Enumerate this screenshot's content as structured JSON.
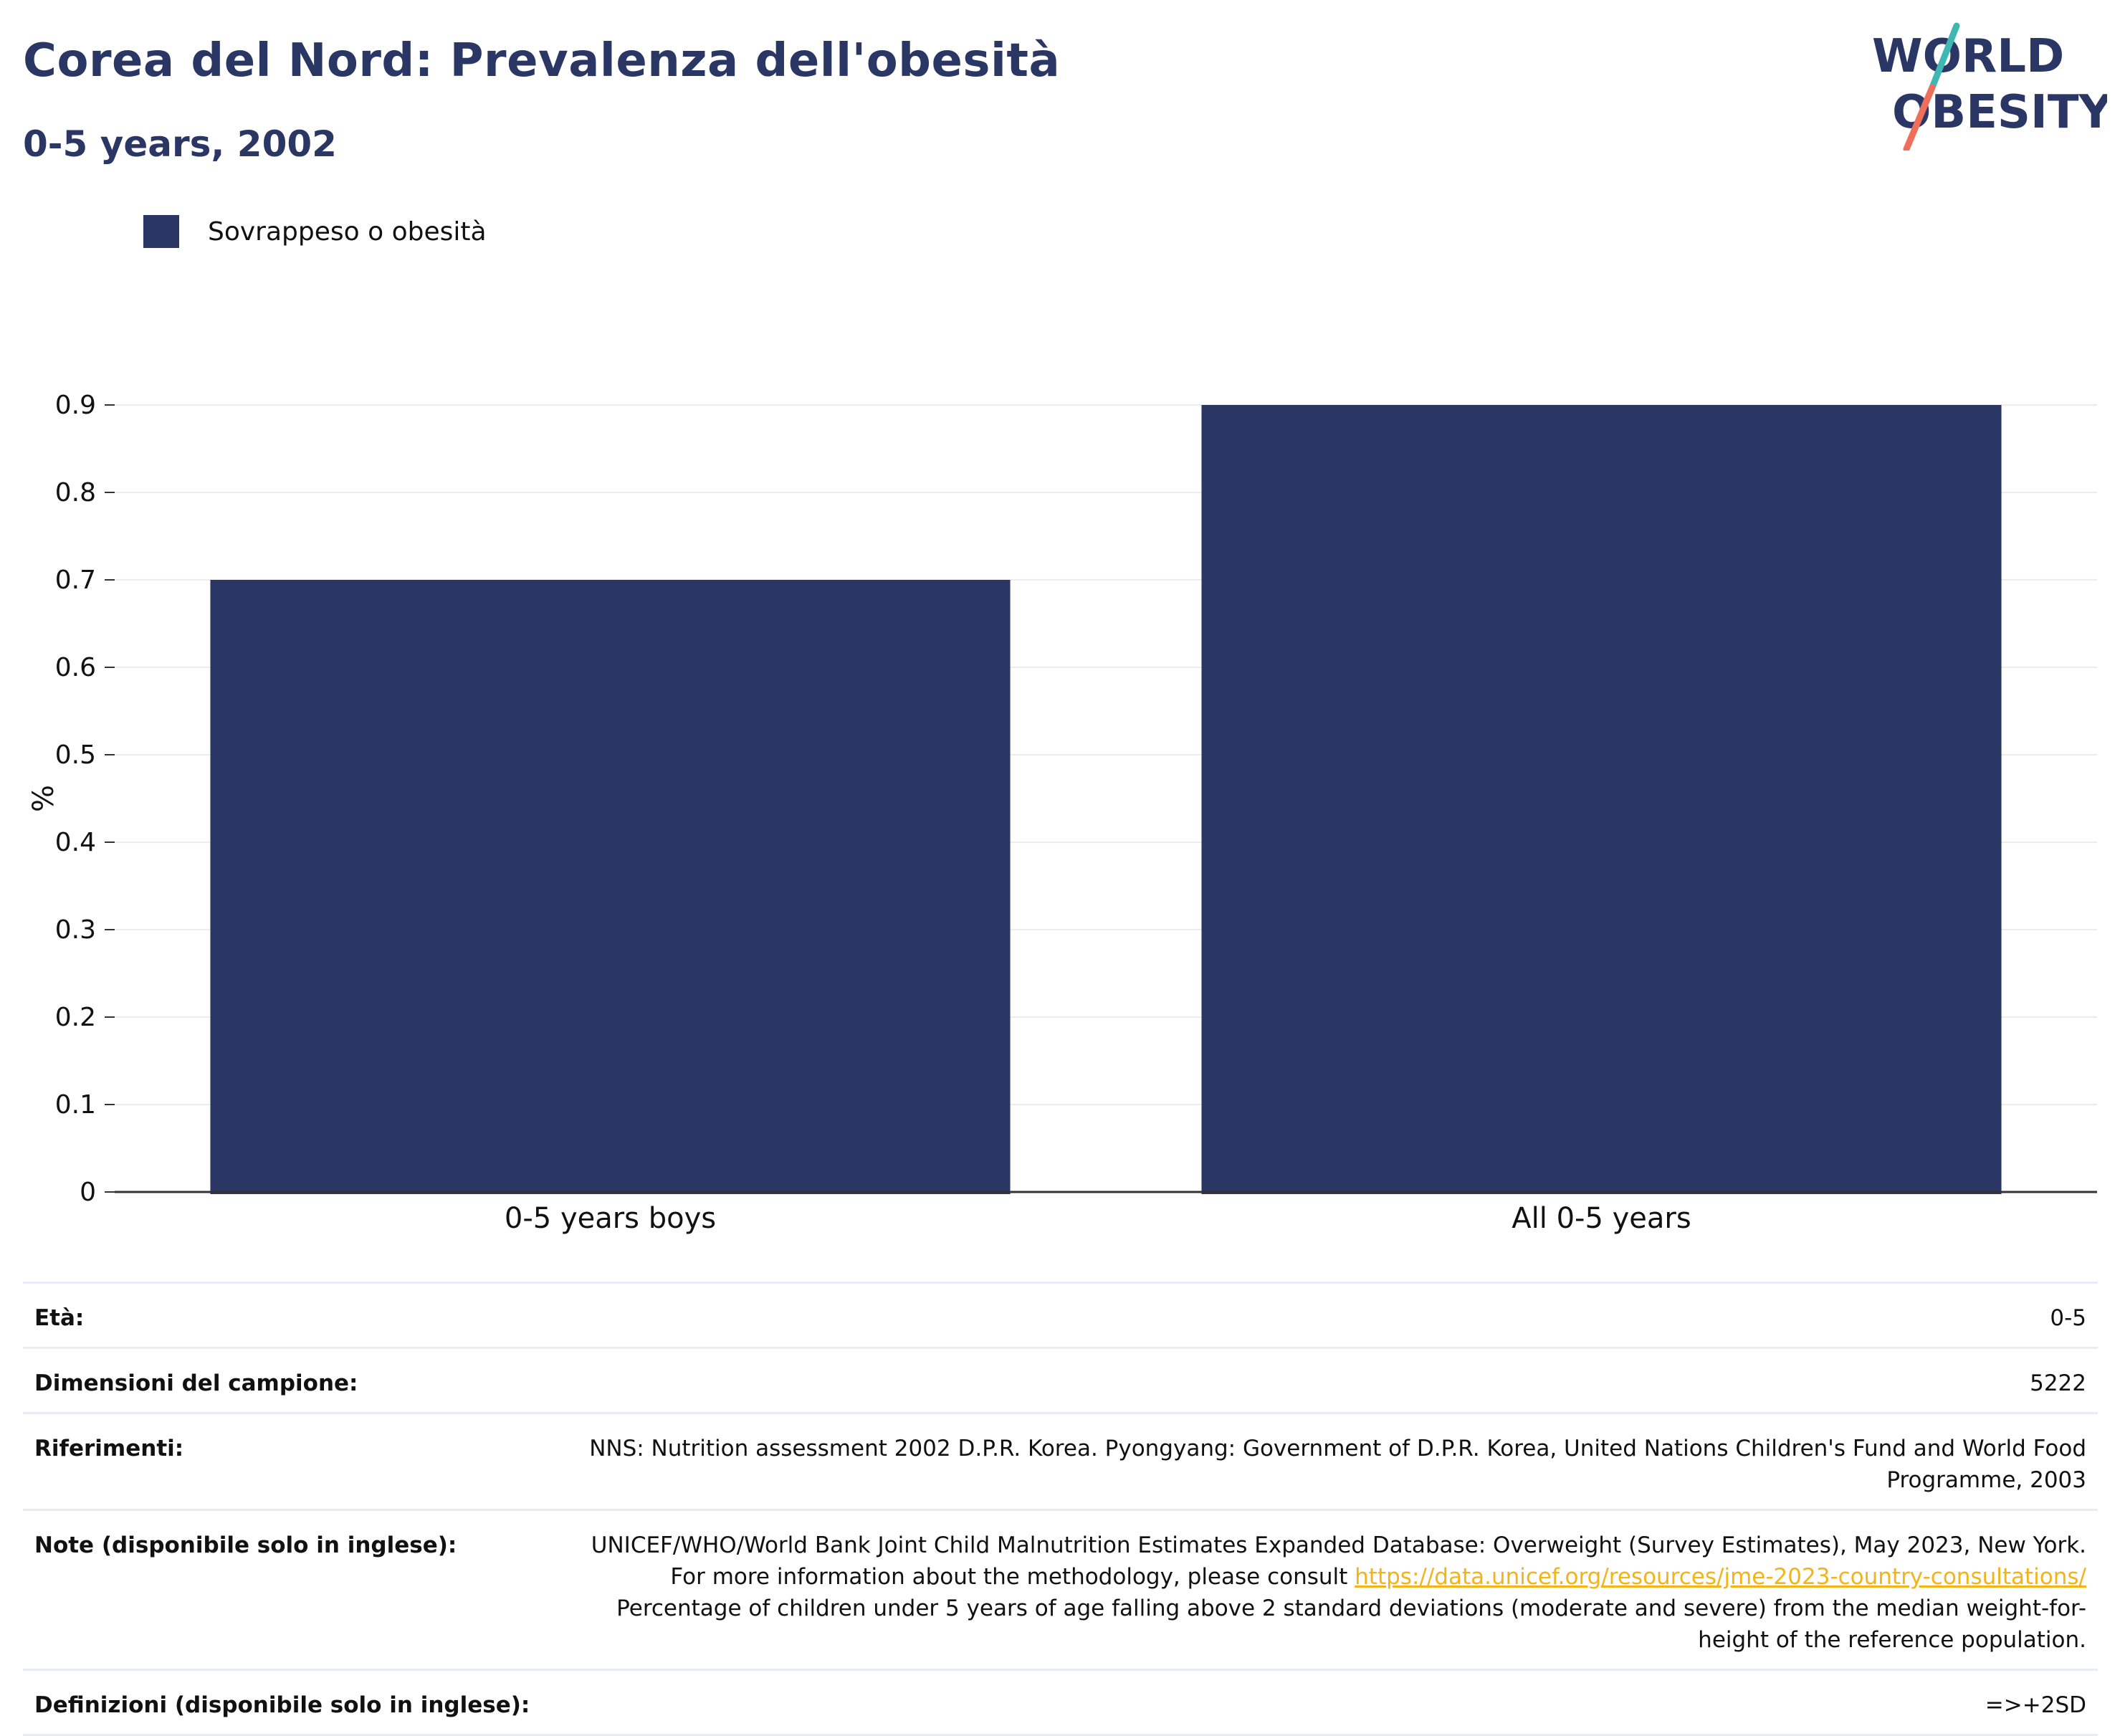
{
  "header": {
    "title": "Corea del Nord: Prevalenza dell'obesità",
    "subtitle": "0-5 years, 2002",
    "logo_line1": "WORLD",
    "logo_line2": "OBESITY"
  },
  "legend": {
    "label": "Sovrappeso o obesità",
    "color": "#2a3663"
  },
  "colors": {
    "bar": "#2a3663",
    "gridline": "#e9ecf5",
    "axis": "#333333",
    "link": "#f2b418",
    "logo_teal": "#3fb8b3",
    "logo_coral": "#ee6e5b"
  },
  "chart_data": {
    "type": "bar",
    "categories": [
      "0-5 years boys",
      "All 0-5 years"
    ],
    "series": [
      {
        "name": "Sovrappeso o obesità",
        "values": [
          0.7,
          0.9
        ]
      }
    ],
    "ylabel": "%",
    "xlabel": "",
    "ylim": [
      0,
      0.9
    ],
    "yticks": [
      "0",
      "0.1",
      "0.2",
      "0.3",
      "0.4",
      "0.5",
      "0.6",
      "0.7",
      "0.8",
      "0.9"
    ],
    "grid": true,
    "legend_position": "top-left"
  },
  "details": {
    "age_label": "Età:",
    "age_value": "0-5",
    "sample_label": "Dimensioni del campione:",
    "sample_value": "5222",
    "refs_label": "Riferimenti:",
    "refs_value": "NNS: Nutrition assessment 2002 D.P.R. Korea. Pyongyang: Government of D.P.R. Korea, United Nations Children's Fund and World Food Programme, 2003",
    "notes_label": "Note (disponibile solo in inglese):",
    "notes_text1": "UNICEF/WHO/World Bank Joint Child Malnutrition Estimates Expanded Database: Overweight (Survey Estimates), May 2023, New York. For more information about the methodology, please consult ",
    "notes_link": "https://data.unicef.org/resources/jme-2023-country-consultations/",
    "notes_text2": "Percentage of children under 5 years of age falling above 2 standard deviations (moderate and severe) from the median weight-for-height of the reference population.",
    "defs_label": "Definizioni (disponibile solo in inglese):",
    "defs_value": "=>+2SD"
  }
}
